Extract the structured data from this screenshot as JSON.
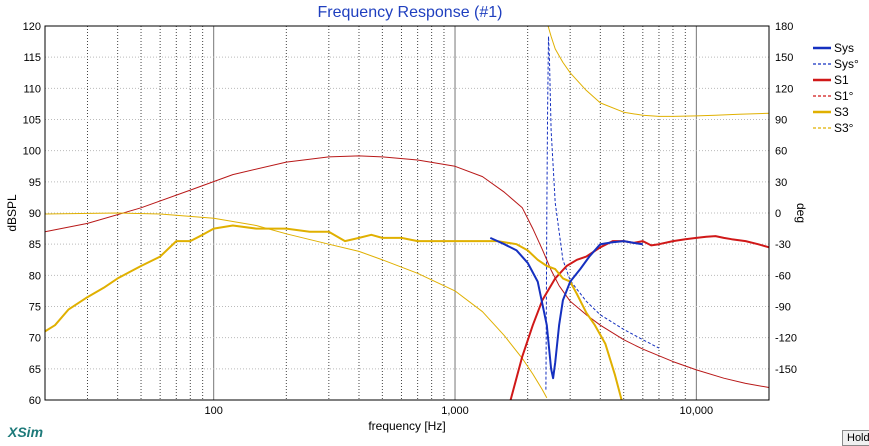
{
  "app": {
    "brand": "XSim",
    "hold_button": "Hold"
  },
  "chart_data": {
    "type": "line",
    "title": "Frequency Response (#1)",
    "xlabel": "frequency [Hz]",
    "ylabel": "dBSPL",
    "y2label": "deg",
    "xscale": "log",
    "xlim": [
      20,
      20000
    ],
    "ylim": [
      60,
      120
    ],
    "y2lim": [
      -180,
      180
    ],
    "xticks": [
      100,
      1000,
      10000
    ],
    "xtick_labels": [
      "100",
      "1,000",
      "10,000"
    ],
    "yticks": [
      60,
      65,
      70,
      75,
      80,
      85,
      90,
      95,
      100,
      105,
      110,
      115,
      120
    ],
    "y2ticks": [
      -150,
      -120,
      -90,
      -60,
      -30,
      0,
      30,
      60,
      90,
      120,
      150,
      180
    ],
    "grid": true,
    "legend_position": "right",
    "series": [
      {
        "name": "Sys",
        "axis": "left",
        "color": "#1530c0",
        "style": "solid",
        "width": 2,
        "x": [
          1400,
          1600,
          1800,
          2000,
          2200,
          2400,
          2500,
          2550,
          2600,
          2700,
          2800,
          3000,
          3300,
          3600,
          4000,
          4500,
          5000,
          5500,
          6000
        ],
        "y": [
          86,
          85,
          84,
          82,
          79,
          72,
          65,
          63.5,
          66,
          72,
          76,
          79,
          81,
          83,
          85,
          85.3,
          85.5,
          85.2,
          85
        ]
      },
      {
        "name": "Sys°",
        "axis": "right",
        "color": "#1530c0",
        "style": "dashed",
        "width": 1,
        "x": [
          2380,
          2390,
          2400,
          2420,
          2440,
          2460,
          2500,
          2600,
          2800,
          3000,
          3500,
          4000,
          5000,
          6000,
          7000
        ],
        "y": [
          -170,
          -100,
          0,
          100,
          170,
          150,
          80,
          10,
          -45,
          -65,
          -85,
          -98,
          -112,
          -122,
          -130
        ]
      },
      {
        "name": "S1",
        "axis": "left",
        "color": "#d01818",
        "style": "solid",
        "width": 2,
        "x": [
          1700,
          1900,
          2100,
          2300,
          2600,
          2900,
          3200,
          3500,
          4000,
          4500,
          5000,
          5500,
          6000,
          6500,
          7000,
          8000,
          9000,
          10000,
          11000,
          12000,
          13000,
          14000,
          16000,
          18000,
          20000
        ],
        "y": [
          60,
          67,
          72,
          76,
          79.5,
          81.5,
          82.5,
          83,
          84.5,
          85.5,
          85.5,
          85.2,
          85.5,
          84.8,
          85,
          85.5,
          85.8,
          86,
          86.2,
          86.3,
          86,
          85.8,
          85.5,
          85,
          84.5
        ]
      },
      {
        "name": "S1°",
        "axis": "right",
        "color": "#b81818",
        "style": "solid",
        "width": 1,
        "x": [
          20,
          30,
          50,
          80,
          120,
          200,
          300,
          400,
          500,
          700,
          1000,
          1300,
          1600,
          1900,
          2100,
          2300,
          2500,
          2700,
          3000,
          3500,
          4000,
          5000,
          6000,
          8000,
          10000,
          13000,
          16000,
          20000
        ],
        "y": [
          -18,
          -10,
          5,
          22,
          37,
          49,
          54,
          55,
          54,
          51,
          45,
          35,
          20,
          5,
          -15,
          -35,
          -55,
          -70,
          -85,
          -98,
          -108,
          -122,
          -131,
          -143,
          -151,
          -159,
          -164,
          -168
        ]
      },
      {
        "name": "S3",
        "axis": "left",
        "color": "#e0b000",
        "style": "solid",
        "width": 2,
        "x": [
          20,
          22,
          25,
          30,
          35,
          40,
          50,
          60,
          70,
          80,
          90,
          100,
          120,
          150,
          200,
          250,
          300,
          350,
          400,
          450,
          500,
          600,
          700,
          800,
          900,
          1000,
          1200,
          1500,
          1800,
          2000,
          2200,
          2400,
          2600,
          2800,
          3000,
          3200,
          3500,
          3800,
          4200,
          4600,
          4900
        ],
        "y": [
          71,
          72,
          74.5,
          76.5,
          78,
          79.5,
          81.5,
          83,
          85.5,
          85.5,
          86.5,
          87.5,
          88,
          87.5,
          87.5,
          87,
          87,
          85.5,
          86,
          86.5,
          86,
          86,
          85.5,
          85.5,
          85.5,
          85.5,
          85.5,
          85.5,
          85,
          84,
          82.5,
          81.5,
          81,
          79.5,
          79,
          77,
          74,
          72,
          69,
          64,
          60
        ]
      },
      {
        "name": "S3°",
        "axis": "right",
        "color": "#e0b000",
        "style": "solid",
        "width": 1,
        "x": [
          20,
          40,
          60,
          100,
          150,
          200,
          300,
          400,
          500,
          700,
          1000,
          1300,
          1600,
          1900,
          2100,
          2300,
          2400
        ],
        "y": [
          -1,
          0,
          -1,
          -5,
          -12,
          -20,
          -30,
          -37,
          -45,
          -58,
          -75,
          -95,
          -118,
          -140,
          -155,
          -170,
          -178
        ]
      },
      {
        "name": "S3°",
        "axis": "right",
        "color": "#e0b000",
        "style": "solid",
        "width": 1,
        "legend": false,
        "x": [
          2430,
          2500,
          2600,
          2800,
          3000,
          3500,
          4000,
          5000,
          6000,
          7000,
          8000,
          10000,
          12000,
          15000,
          20000
        ],
        "y": [
          180,
          170,
          158,
          145,
          135,
          118,
          106,
          97,
          94,
          93,
          93,
          93.5,
          94,
          95,
          96
        ]
      }
    ],
    "legend": [
      {
        "name": "Sys",
        "color": "#1530c0",
        "style": "solid"
      },
      {
        "name": "Sys°",
        "color": "#1530c0",
        "style": "dashed"
      },
      {
        "name": "S1",
        "color": "#d01818",
        "style": "solid"
      },
      {
        "name": "S1°",
        "color": "#d01818",
        "style": "dashed"
      },
      {
        "name": "S3",
        "color": "#e0b000",
        "style": "solid"
      },
      {
        "name": "S3°",
        "color": "#e0b000",
        "style": "dashed"
      }
    ]
  }
}
